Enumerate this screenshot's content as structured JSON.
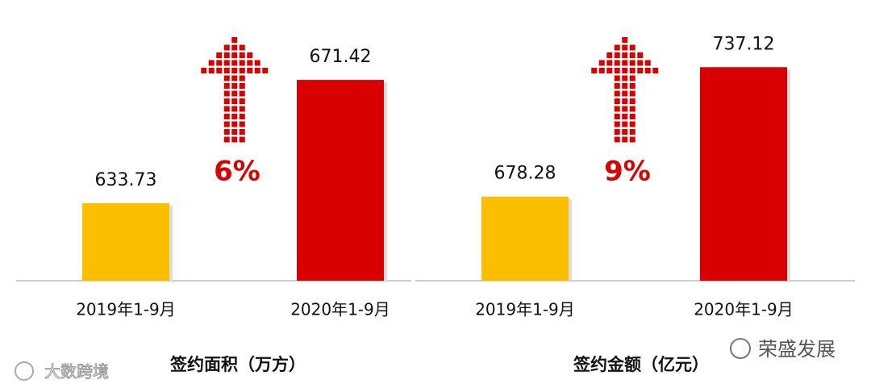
{
  "chart_data": [
    {
      "type": "bar",
      "title": "签约面积（万方）",
      "annotation": "6%",
      "categories": [
        "2019年1-9月",
        "2020年1-9月"
      ],
      "values": [
        633.73,
        671.42
      ],
      "colors": [
        "#fbbf00",
        "#d90000"
      ],
      "ylim": [
        610,
        686
      ]
    },
    {
      "type": "bar",
      "title": "签约金额（亿元）",
      "annotation": "9%",
      "categories": [
        "2019年1-9月",
        "2020年1-9月"
      ],
      "values": [
        678.28,
        737.12
      ],
      "colors": [
        "#fbbf00",
        "#d90000"
      ],
      "ylim": [
        640,
        753
      ]
    }
  ],
  "watermarks": [
    "大数跨境",
    "荣盛发展"
  ]
}
